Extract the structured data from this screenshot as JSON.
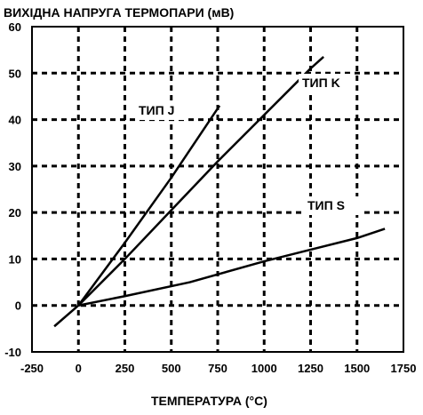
{
  "chart_data": {
    "type": "line",
    "title": "ВИХІДНА НАПРУГА ТЕРМОПАРИ (мВ)",
    "xlabel": "ТЕМПЕРАТУРА (°C)",
    "ylabel": "",
    "xlim": [
      -250,
      1750
    ],
    "ylim": [
      -10,
      60
    ],
    "xticks": [
      -250,
      0,
      250,
      500,
      750,
      1000,
      1250,
      1500,
      1750
    ],
    "yticks": [
      -10,
      0,
      10,
      20,
      30,
      40,
      50,
      60
    ],
    "xtick_labels": [
      "-250",
      "0",
      "250",
      "500",
      "750",
      "1000",
      "1250",
      "1500",
      "1750"
    ],
    "ytick_labels": [
      "-10",
      "0",
      "10",
      "20",
      "30",
      "40",
      "50",
      "60"
    ],
    "grid": true,
    "series": [
      {
        "name": "ТИП J",
        "x": [
          0,
          250,
          500,
          760
        ],
        "y": [
          0,
          13.5,
          27.5,
          43
        ]
      },
      {
        "name": "ТИП K",
        "x": [
          -130,
          0,
          250,
          500,
          750,
          1000,
          1250,
          1320
        ],
        "y": [
          -4.5,
          0,
          10,
          20.5,
          31,
          41,
          51,
          53.5
        ]
      },
      {
        "name": "ТИП S",
        "x": [
          0,
          250,
          600,
          1000,
          1250,
          1500,
          1650
        ],
        "y": [
          0,
          2,
          5,
          9.5,
          12,
          14.5,
          16.5
        ]
      }
    ]
  }
}
